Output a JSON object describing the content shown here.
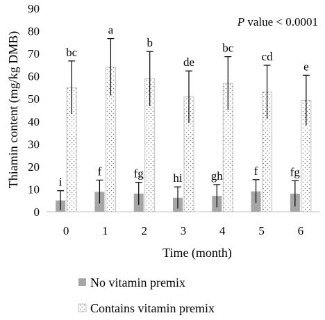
{
  "chart_data": {
    "type": "bar",
    "categories": [
      "0",
      "1",
      "2",
      "3",
      "4",
      "5",
      "6"
    ],
    "xlabel": "Time (month)",
    "ylabel": "Thiamin content (mg/kg DMB)",
    "ylim": [
      0,
      90
    ],
    "yticks": [
      0,
      10,
      20,
      30,
      40,
      50,
      60,
      70,
      80,
      90
    ],
    "grid": false,
    "legend_position": "bottom",
    "annotation": {
      "italic": "P",
      "rest": " value < 0.0001"
    },
    "series": [
      {
        "name": "No vitamin premix",
        "pattern": "solid",
        "color": "#a6a6a6",
        "values": [
          5.0,
          8.8,
          8.0,
          6.2,
          7.0,
          9.0,
          8.0
        ],
        "error": [
          4.3,
          5.2,
          5.0,
          4.8,
          5.0,
          5.2,
          5.7
        ],
        "letters": [
          "i",
          "f",
          "fg",
          "hi",
          "gh",
          "f",
          "fg"
        ]
      },
      {
        "name": "Contains vitamin premix",
        "pattern": "dotted",
        "color": "#f2f2f2",
        "values": [
          55.0,
          64.0,
          58.8,
          50.8,
          56.8,
          53.0,
          49.3
        ],
        "error": [
          11.7,
          12.6,
          12.1,
          11.5,
          11.8,
          11.8,
          11.1
        ],
        "letters": [
          "bc",
          "a",
          "b",
          "de",
          "bc",
          "cd",
          "e"
        ]
      }
    ]
  }
}
